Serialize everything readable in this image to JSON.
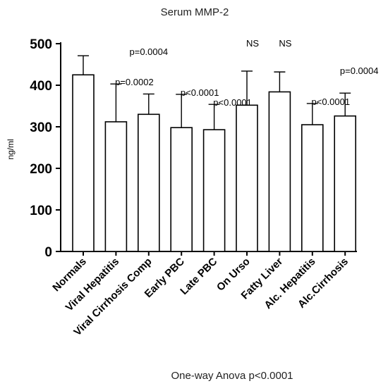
{
  "chart_data": {
    "type": "bar",
    "title": "Serum MMP-2",
    "ylabel": "ng/ml",
    "footnote": "One-way Anova p<0.0001",
    "ylim": [
      0,
      500
    ],
    "yticks": [
      "0",
      "100",
      "200",
      "300",
      "400",
      "500"
    ],
    "categories": [
      "Normals",
      "Viral Hepatitis",
      "Viral Cirrhosis Comp",
      "Early PBC",
      "Late PBC",
      "On Urso",
      "Fatty Liver",
      "Alc. Hepatitis",
      "Alc.Cirrhosis"
    ],
    "values": [
      425,
      312,
      330,
      298,
      293,
      352,
      384,
      305,
      326
    ],
    "error_upper": [
      471,
      403,
      379,
      378,
      354,
      434,
      432,
      356,
      381
    ],
    "annotations": [
      "",
      "p=0.0002",
      "p=0.0004",
      "p<0.0001",
      "p<0.0001",
      "NS",
      "NS",
      "p<0.0001",
      "p=0.0004"
    ],
    "bar_color": "#ffffff",
    "edge_color": "#000000"
  }
}
